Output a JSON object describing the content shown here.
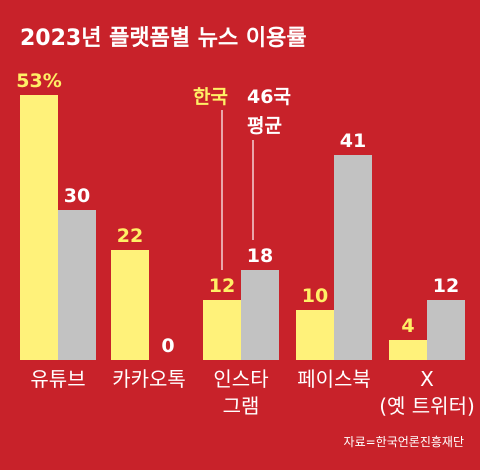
{
  "chart_data": {
    "type": "bar",
    "title": "2023년 플랫폼별 뉴스 이용률",
    "categories": [
      [
        "유튜브"
      ],
      [
        "카카오톡"
      ],
      [
        "인스타",
        "그램"
      ],
      [
        "페이스북"
      ],
      [
        "X",
        "(옛 트위터)"
      ]
    ],
    "series": [
      {
        "name": "한국",
        "values": [
          53,
          22,
          12,
          10,
          4
        ],
        "color": "#fff27a",
        "value_labels": [
          "53%",
          "22",
          "12",
          "10",
          "4"
        ]
      },
      {
        "name": "46국 평균",
        "values": [
          30,
          0,
          18,
          41,
          12
        ],
        "color": "#c2c2c2",
        "value_labels": [
          "30",
          "0",
          "18",
          "41",
          "12"
        ]
      }
    ],
    "legend": {
      "korea": "한국",
      "avg_line1": "46국",
      "avg_line2": "평균"
    },
    "source": "자료=한국언론진흥재단",
    "ylim": [
      0,
      53
    ],
    "grid": false,
    "colors": {
      "background": "#c8222a",
      "korea": "#fff27a",
      "average": "#c2c2c2",
      "label_korea": "#ffef66",
      "label_average": "#ffffff"
    }
  }
}
